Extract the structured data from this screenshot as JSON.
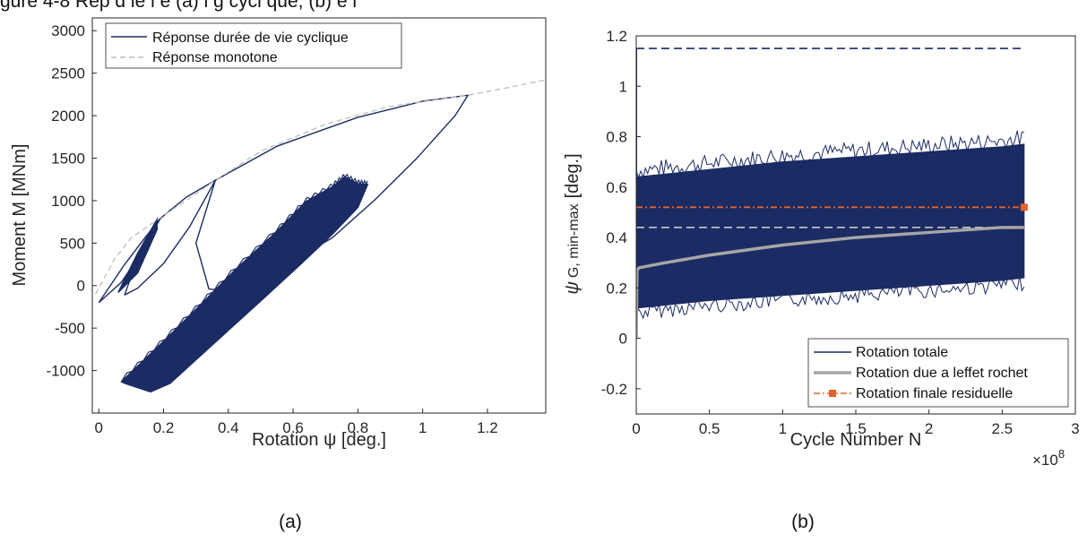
{
  "top_text": "gure 4-8 Rép       d   le l   e   (a)                          l g      cycl que, (b) é  l     ",
  "chart_data": [
    {
      "type": "line",
      "caption": "(a)",
      "xlabel": "Rotation ψ [deg.]",
      "ylabel": "Moment M [MNm]",
      "xlim": [
        -0.02,
        1.38
      ],
      "ylim": [
        -1500,
        3150
      ],
      "xticks": [
        0,
        0.2,
        0.4,
        0.6,
        0.8,
        1,
        1.2
      ],
      "xtick_labels": [
        "0",
        "0.2",
        "0.4",
        "0.6",
        "0.8",
        "1",
        "1.2"
      ],
      "yticks": [
        -1000,
        -500,
        0,
        500,
        1000,
        1500,
        2000,
        2500,
        3000
      ],
      "ytick_labels": [
        "-1000",
        "-500",
        "0",
        "500",
        "1000",
        "1500",
        "2000",
        "2500",
        "3000"
      ],
      "grid": false,
      "legend": "top-left",
      "series": [
        {
          "name": "Réponse durée de vie cyclique",
          "color": "#1b2b63",
          "style": "solid",
          "loops": [
            {
              "x": [
                0.0,
                0.08,
                0.14,
                0.19,
                0.13,
                0.07,
                0.0
              ],
              "y": [
                -200,
                250,
                550,
                790,
                380,
                40,
                -200
              ]
            },
            {
              "x": [
                0.19,
                0.27,
                0.36,
                0.28,
                0.2,
                0.12,
                0.08,
                0.12,
                0.19
              ],
              "y": [
                790,
                1040,
                1240,
                690,
                260,
                -30,
                -110,
                330,
                790
              ]
            },
            {
              "x": [
                0.36,
                0.55,
                0.8,
                1.0,
                1.14,
                1.1,
                0.98,
                0.85,
                0.72,
                0.55,
                0.42,
                0.34,
                0.3,
                0.36
              ],
              "y": [
                1240,
                1640,
                1980,
                2170,
                2240,
                2000,
                1490,
                1000,
                560,
                180,
                -70,
                -40,
                500,
                1240
              ]
            }
          ],
          "band": {
            "upper_x": [
              0.07,
              0.18,
              0.3,
              0.42,
              0.55,
              0.64,
              0.72,
              0.76,
              0.8,
              0.83
            ],
            "upper_y": [
              -1130,
              -730,
              -280,
              180,
              640,
              990,
              1160,
              1280,
              1200,
              1190
            ],
            "lower_x": [
              0.08,
              0.16,
              0.22,
              0.35,
              0.5,
              0.62,
              0.72,
              0.8,
              0.83
            ],
            "lower_y": [
              -1150,
              -1250,
              -1150,
              -700,
              -180,
              240,
              600,
              920,
              1190
            ]
          },
          "small_band": {
            "upper_x": [
              0.06,
              0.12,
              0.18
            ],
            "upper_y": [
              -80,
              380,
              780
            ],
            "lower_x": [
              0.06,
              0.12,
              0.18
            ],
            "lower_y": [
              -80,
              150,
              660
            ]
          }
        },
        {
          "name": "Réponse monotone",
          "color": "#bdbdbd",
          "style": "dashed",
          "x": [
            -0.01,
            0.05,
            0.1,
            0.19,
            0.3,
            0.36,
            0.5,
            0.7,
            0.9,
            1.14,
            1.25,
            1.38
          ],
          "y": [
            -100,
            320,
            560,
            800,
            1080,
            1240,
            1580,
            1900,
            2110,
            2240,
            2320,
            2420
          ]
        }
      ]
    },
    {
      "type": "line",
      "caption": "(b)",
      "xlabel": "Cycle Number N",
      "ylabel_main": "ψ",
      "ylabel_sub": "G, min-max",
      "ylabel_unit": "[deg.]",
      "x_multiplier": "×10",
      "x_multiplier_exp": "8",
      "xlim": [
        0,
        3
      ],
      "ylim": [
        -0.3,
        1.2
      ],
      "xticks": [
        0,
        0.5,
        1,
        1.5,
        2,
        2.5,
        3
      ],
      "xtick_labels": [
        "0",
        "0.5",
        "1",
        "1.5",
        "2",
        "2.5",
        "3"
      ],
      "yticks": [
        -0.2,
        0,
        0.2,
        0.4,
        0.6,
        0.8,
        1,
        1.2
      ],
      "ytick_labels": [
        "-0.2",
        "0",
        "0.2",
        "0.4",
        "0.6",
        "0.8",
        "1",
        "1.2"
      ],
      "grid": false,
      "legend": "bottom-right",
      "series": [
        {
          "name": "Rotation totale",
          "color": "#1b2b63",
          "style": "solid",
          "band_x": [
            0,
            0.5,
            1,
            1.5,
            2,
            2.5,
            2.65
          ],
          "band_upper": [
            0.64,
            0.67,
            0.7,
            0.72,
            0.74,
            0.76,
            0.77
          ],
          "band_lower": [
            0.12,
            0.15,
            0.17,
            0.19,
            0.21,
            0.23,
            0.24
          ],
          "spike_x": [
            0,
            0,
            0.01
          ],
          "spike_y": [
            0,
            1.15,
            0.6
          ],
          "peak_dashed_y": 1.15
        },
        {
          "name": "Rotation due a leffet rochet",
          "color": "#a6a6a6",
          "style": "solid",
          "x": [
            0,
            0.005,
            0.02,
            0.2,
            0.5,
            1,
            1.5,
            2,
            2.5,
            2.65
          ],
          "y": [
            0,
            0.27,
            0.28,
            0.3,
            0.33,
            0.37,
            0.4,
            0.42,
            0.44,
            0.44
          ],
          "dashed_y": 0.44
        },
        {
          "name": "Rotation finale residuelle",
          "color": "#e2622b",
          "style": "dash-dot",
          "x": [
            0,
            2.65
          ],
          "y": [
            0.52,
            0.52
          ]
        }
      ]
    }
  ]
}
